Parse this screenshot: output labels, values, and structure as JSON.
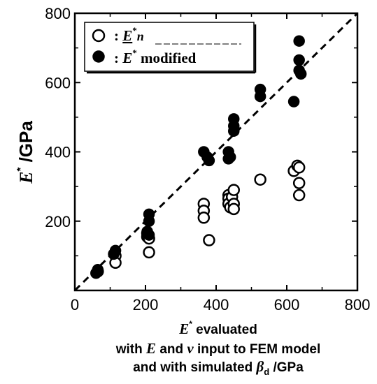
{
  "chart_data": {
    "type": "scatter",
    "title": "",
    "xlabel": {
      "line1_symbol": "E",
      "line1_sup": "*",
      "line1_rest": " evaluated",
      "line2_a": "with ",
      "line2_E": "E",
      "line2_b": " and ",
      "line2_nu": "ν",
      "line2_c": " input to FEM model",
      "line3_a": "and with simulated ",
      "line3_beta": "β",
      "line3_sub": "d",
      "line3_b": " /GPa"
    },
    "ylabel": {
      "symbol": "E",
      "sup": "*",
      "rest": " /GPa"
    },
    "xlim": [
      0,
      800
    ],
    "ylim": [
      0,
      800
    ],
    "xticks": [
      0,
      200,
      400,
      600,
      800
    ],
    "yticks": [
      200,
      400,
      600,
      800
    ],
    "xtick_labels": [
      "0",
      "200",
      "400",
      "600",
      "800"
    ],
    "ytick_labels": [
      "200",
      "400",
      "600",
      "800"
    ],
    "reference_line": "y = x (dashed)",
    "legend": {
      "placement": "top-left",
      "entries": [
        {
          "marker": "open-circle",
          "prefix": ": ",
          "symbol": "E",
          "sup": "*",
          "suffix": "n"
        },
        {
          "marker": "filled-circle",
          "prefix": ": ",
          "symbol": "E",
          "sup": "*",
          "suffix": " modified"
        }
      ]
    },
    "series": [
      {
        "marker": "open-circle",
        "x": [
          65,
          115,
          115,
          205,
          205,
          210,
          210,
          365,
          365,
          365,
          380,
          435,
          435,
          435,
          440,
          445,
          450,
          450,
          450,
          525,
          620,
          630,
          635,
          635,
          635
        ],
        "y": [
          55,
          100,
          80,
          155,
          165,
          150,
          110,
          250,
          230,
          210,
          145,
          275,
          265,
          250,
          240,
          270,
          290,
          250,
          235,
          320,
          345,
          360,
          355,
          310,
          275
        ]
      },
      {
        "marker": "filled-circle",
        "x": [
          60,
          65,
          110,
          115,
          205,
          210,
          210,
          210,
          365,
          375,
          380,
          435,
          435,
          440,
          450,
          450,
          450,
          525,
          525,
          620,
          635,
          635,
          635,
          640
        ],
        "y": [
          50,
          60,
          105,
          115,
          170,
          200,
          220,
          160,
          400,
          385,
          375,
          400,
          380,
          385,
          495,
          475,
          460,
          580,
          560,
          545,
          720,
          665,
          635,
          625
        ]
      }
    ]
  }
}
